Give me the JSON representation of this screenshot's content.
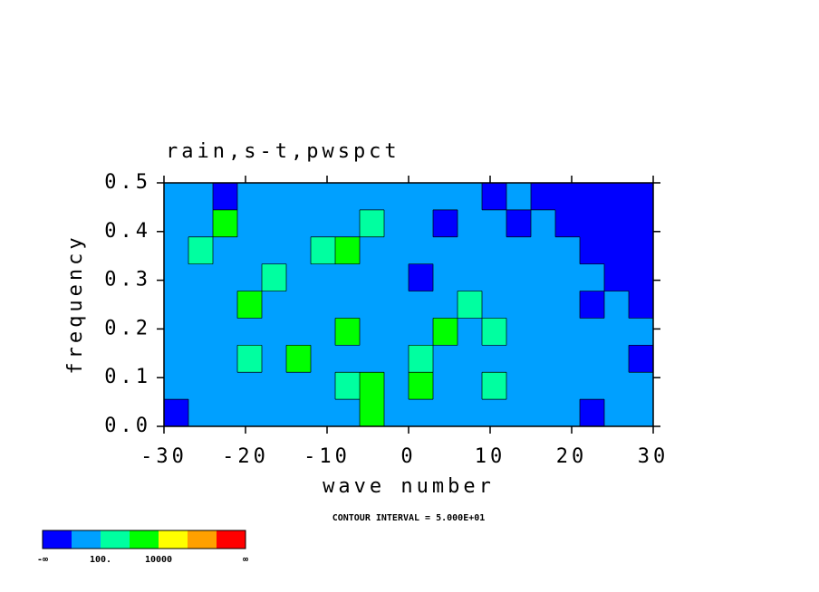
{
  "chart_data": {
    "type": "contour",
    "title": "rain,s-t,pwspct",
    "x_label": "wave number",
    "y_label": "frequency",
    "annotation": "CONTOUR INTERVAL = 5.000E+01",
    "xlim": [
      -30,
      30
    ],
    "xticks": [
      -30,
      -20,
      -10,
      0,
      10,
      20,
      30
    ],
    "ylim": [
      0,
      0.5
    ],
    "yticks": [
      {
        "value": 0,
        "label": "0.0"
      },
      0.1,
      0.2,
      0.3,
      0.4,
      0.5
    ],
    "colorbar": {
      "colors": [
        "#0000ff",
        "#00a0ff",
        "#00ffa0",
        "#00ff00",
        "#ffff00",
        "#ffa000",
        "#ff0000"
      ],
      "edge_labels": [
        "-∞",
        null,
        "100.",
        null,
        "10000",
        null,
        null,
        "∞"
      ]
    },
    "cells": [
      [
        1,
        1,
        0,
        1,
        1,
        1,
        1,
        1,
        1,
        1,
        1,
        1,
        1,
        0,
        1,
        0,
        0,
        0,
        0,
        0
      ],
      [
        1,
        1,
        3,
        1,
        1,
        1,
        1,
        1,
        2,
        1,
        1,
        0,
        1,
        1,
        0,
        1,
        0,
        0,
        0,
        0
      ],
      [
        1,
        2,
        1,
        1,
        1,
        1,
        2,
        3,
        1,
        1,
        1,
        1,
        1,
        1,
        1,
        1,
        1,
        0,
        0,
        0
      ],
      [
        1,
        1,
        1,
        1,
        2,
        1,
        1,
        1,
        1,
        1,
        0,
        1,
        1,
        1,
        1,
        1,
        1,
        1,
        0,
        0
      ],
      [
        1,
        1,
        1,
        3,
        1,
        1,
        1,
        1,
        1,
        1,
        1,
        1,
        2,
        1,
        1,
        1,
        1,
        0,
        1,
        0
      ],
      [
        1,
        1,
        1,
        1,
        1,
        1,
        1,
        3,
        1,
        1,
        1,
        3,
        1,
        2,
        1,
        1,
        1,
        1,
        1,
        1
      ],
      [
        1,
        1,
        1,
        2,
        1,
        3,
        1,
        1,
        1,
        1,
        2,
        1,
        1,
        1,
        1,
        1,
        1,
        1,
        1,
        0
      ],
      [
        1,
        1,
        1,
        1,
        1,
        1,
        1,
        2,
        3,
        1,
        3,
        1,
        1,
        2,
        1,
        1,
        1,
        1,
        1,
        1
      ],
      [
        0,
        1,
        1,
        1,
        1,
        1,
        1,
        1,
        3,
        1,
        1,
        1,
        1,
        1,
        1,
        1,
        1,
        0,
        1,
        1
      ]
    ]
  }
}
